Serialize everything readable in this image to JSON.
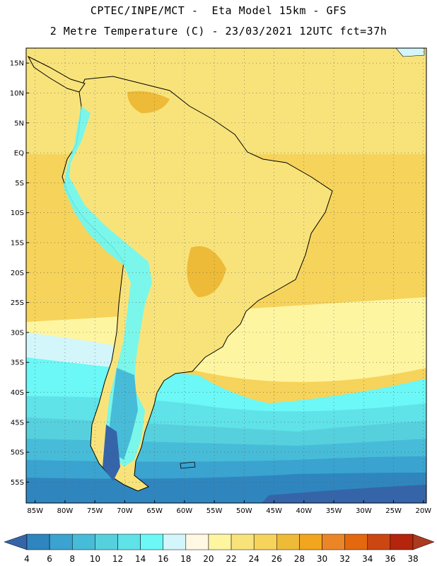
{
  "header": {
    "line1": "CPTEC/INPE/MCT -  Eta Model 15km - GFS",
    "line2": "2 Metre Temperature (C) - 23/03/2021 12UTC fct=37h"
  },
  "map": {
    "lat_labels": [
      "15N",
      "10N",
      "5N",
      "EQ",
      "5S",
      "10S",
      "15S",
      "20S",
      "25S",
      "30S",
      "35S",
      "40S",
      "45S",
      "50S",
      "55S"
    ],
    "lon_labels": [
      "85W",
      "80W",
      "75W",
      "70W",
      "65W",
      "60W",
      "55W",
      "50W",
      "45W",
      "40W",
      "35W",
      "30W",
      "25W",
      "20W"
    ],
    "extent": {
      "lon_min": -86.5,
      "lon_max": -19.5,
      "lat_min": -58.5,
      "lat_max": 17.5
    },
    "grid": "dotted"
  },
  "colorbar": {
    "labels": [
      "4",
      "6",
      "8",
      "10",
      "12",
      "14",
      "16",
      "18",
      "20",
      "22",
      "24",
      "26",
      "28",
      "30",
      "32",
      "34",
      "36",
      "38"
    ],
    "colors": [
      "#3565a8",
      "#2f86bf",
      "#3aa3cf",
      "#47bcd8",
      "#57d0de",
      "#5fe2e8",
      "#6bf8f6",
      "#d3f6fb",
      "#fff8e2",
      "#fef5a1",
      "#f8e37b",
      "#f6d35a",
      "#eebb38",
      "#f2a51e",
      "#ea8628",
      "#e4680e",
      "#cb4711",
      "#b5250e",
      "#aa3a20"
    ]
  }
}
